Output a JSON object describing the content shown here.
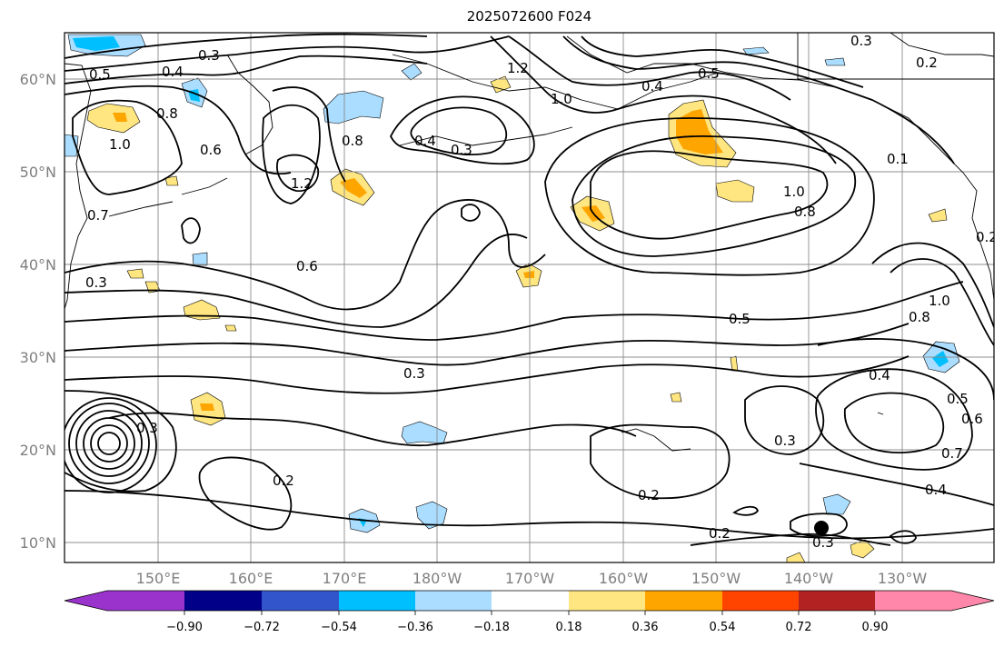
{
  "title": "2025072600 F024",
  "lat_labels": [
    "60°N",
    "50°N",
    "40°N",
    "30°N",
    "20°N",
    "10°N"
  ],
  "lon_labels": [
    "150°E",
    "160°E",
    "170°E",
    "180°W",
    "170°W",
    "160°W",
    "150°W",
    "140°W",
    "130°W"
  ],
  "colorbar": {
    "tick_labels": [
      "−0.90",
      "−0.72",
      "−0.54",
      "−0.36",
      "−0.18",
      "0.18",
      "0.36",
      "0.54",
      "0.72",
      "0.90"
    ],
    "colors": [
      "#9933cc",
      "#000088",
      "#3355cc",
      "#00bfff",
      "#aaddff",
      "#ffffff",
      "#ffe680",
      "#ffa500",
      "#ff4400",
      "#b22222",
      "#ff88aa"
    ]
  },
  "contour_labels": [
    "0.3",
    "0.4",
    "0.5",
    "0.8",
    "1.0",
    "0.6",
    "1.2",
    "0.4",
    "0.3",
    "1.2",
    "1.0",
    "0.4",
    "0.5",
    "0.3",
    "0.2",
    "1.0",
    "0.8",
    "0.3",
    "0.6",
    "0.5",
    "0.3",
    "0.4",
    "0.5",
    "0.6",
    "0.8",
    "1.0",
    "0.7",
    "0.4",
    "0.3",
    "0.2",
    "0.2",
    "0.3",
    "0.2",
    "0.7",
    "0.2",
    "0.8",
    "0.1",
    "0.3"
  ],
  "marker": "storm-center-dot"
}
